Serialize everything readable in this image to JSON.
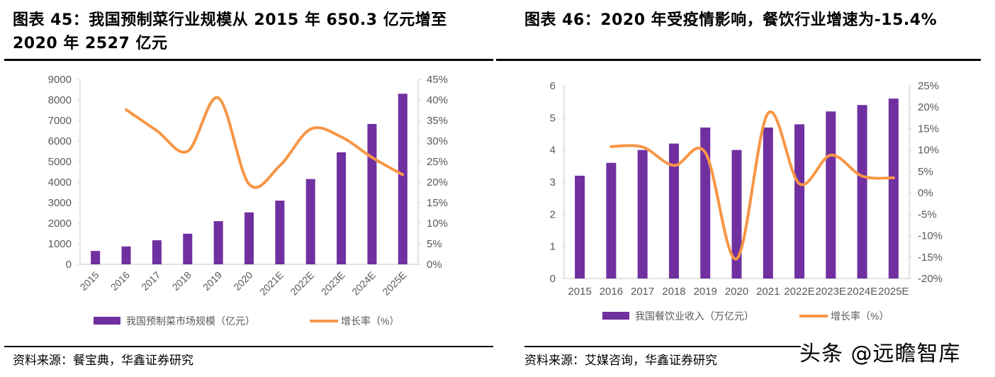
{
  "titles": {
    "left": "图表 45：我国预制菜行业规模从 2015 年 650.3 亿元增至 2020 年 2527 亿元",
    "right": "图表 46：2020 年受疫情影响，餐饮行业增速为-15.4%"
  },
  "sources": {
    "left": "资料来源：餐宝典，华鑫证券研究",
    "right": "资料来源：艾媒咨询，华鑫证券研究"
  },
  "watermark": "头条 @远瞻智库",
  "colors": {
    "bar": "#7030A0",
    "line": "#F79646",
    "axis": "#D9D9D9",
    "tick_text": "#595959"
  },
  "chart_data": [
    {
      "type": "bar",
      "title": "我国预制菜行业规模从 2015 年 650.3 亿元增至 2020 年 2527 亿元",
      "categories": [
        "2015",
        "2016",
        "2017",
        "2018",
        "2019",
        "2020",
        "2021E",
        "2022E",
        "2023E",
        "2024E",
        "2025E"
      ],
      "series": [
        {
          "name": "我国预制菜市场规模（亿元）",
          "type": "bar",
          "axis": "left",
          "values": [
            650.3,
            870,
            1170,
            1490,
            2100,
            2527,
            3100,
            4150,
            5450,
            6830,
            8300
          ]
        },
        {
          "name": "增长率（%）",
          "type": "line",
          "axis": "right",
          "smooth": true,
          "values": [
            null,
            37.6,
            32.5,
            27.5,
            40.5,
            19.5,
            24.0,
            32.9,
            31.0,
            26.0,
            21.8
          ]
        }
      ],
      "y_left": {
        "min": 0,
        "max": 9000,
        "step": 1000,
        "ticks": [
          "0",
          "1000",
          "2000",
          "3000",
          "4000",
          "5000",
          "6000",
          "7000",
          "8000",
          "9000"
        ]
      },
      "y_right": {
        "min": 0,
        "max": 45,
        "step": 5,
        "ticks": [
          "0%",
          "5%",
          "10%",
          "15%",
          "20%",
          "25%",
          "30%",
          "35%",
          "40%",
          "45%"
        ]
      },
      "xlabel": "",
      "ylabel": "",
      "x_labels_rotated": true,
      "legend_position": "bottom",
      "grid": false
    },
    {
      "type": "bar",
      "title": "2020 年受疫情影响，餐饮行业增速为-15.4%",
      "categories": [
        "2015",
        "2016",
        "2017",
        "2018",
        "2019",
        "2020",
        "2021",
        "2022E",
        "2023E",
        "2024E",
        "2025E"
      ],
      "series": [
        {
          "name": "我国餐饮业收入（万亿元）",
          "type": "bar",
          "axis": "left",
          "values": [
            3.2,
            3.6,
            4.0,
            4.2,
            4.7,
            4.0,
            4.7,
            4.8,
            5.2,
            5.4,
            5.6
          ]
        },
        {
          "name": "增长率（%）",
          "type": "line",
          "axis": "right",
          "smooth": true,
          "values": [
            null,
            10.8,
            10.7,
            6.4,
            9.4,
            -15.4,
            18.6,
            2.1,
            8.8,
            3.9,
            3.5
          ]
        }
      ],
      "y_left": {
        "min": 0,
        "max": 6,
        "step": 1,
        "ticks": [
          "0",
          "1",
          "2",
          "3",
          "4",
          "5",
          "6"
        ]
      },
      "y_right": {
        "min": -20,
        "max": 25,
        "step": 5,
        "ticks": [
          "-20%",
          "-15%",
          "-10%",
          "-5%",
          "0%",
          "5%",
          "10%",
          "15%",
          "20%",
          "25%"
        ]
      },
      "xlabel": "",
      "ylabel": "",
      "x_labels_rotated": false,
      "legend_position": "bottom",
      "grid": false
    }
  ]
}
